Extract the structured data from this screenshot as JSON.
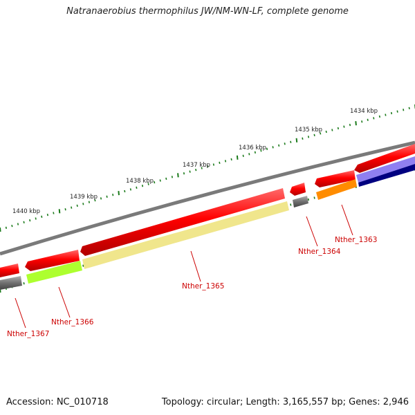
{
  "title": "Natranaerobius thermophilus JW/NM-WN-LF, complete genome",
  "footer": {
    "accession": "Accession: NC_010718",
    "summary": "Topology: circular; Length: 3,165,557 bp; Genes: 2,946"
  },
  "scale_labels": [
    "1434 kbp",
    "1435 kbp",
    "1436 kbp",
    "1437 kbp",
    "1438 kbp",
    "1439 kbp",
    "1440 kbp"
  ],
  "gene_labels": [
    "Nther_1363",
    "Nther_1364",
    "Nther_1365",
    "Nther_1366",
    "Nther_1367"
  ],
  "colors": {
    "backbone": "#7a7a7a",
    "cds": "#ff0000",
    "scale_tick": "#1a7a1a",
    "label": "#cc0000",
    "nther_1363": "#ff8c00",
    "nther_1364": "#707070",
    "nther_1365": "#f0e68c",
    "nther_1366": "#adff2f",
    "nther_1367": "#707070",
    "feature_purple": "#7b68ee",
    "feature_navy": "#000080"
  }
}
